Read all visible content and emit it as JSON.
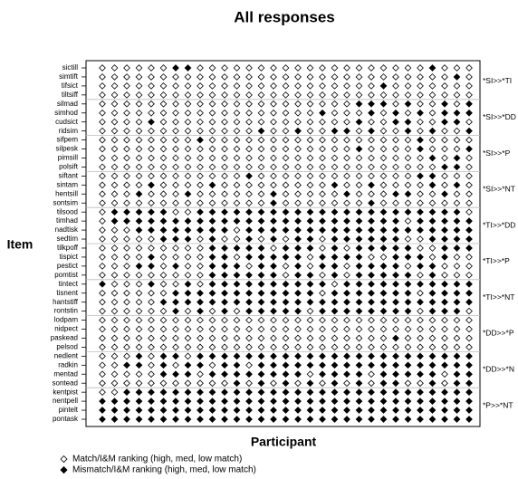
{
  "chart_data": {
    "type": "dot_matrix",
    "title": "All responses",
    "xlabel": "Participant",
    "ylabel": "Item",
    "categories": [
      "sictill",
      "simtift",
      "tifsict",
      "tiltsiff",
      "silmad",
      "simhod",
      "cudsict",
      "ridsim",
      "sifpem",
      "silpesk",
      "pimsill",
      "polsift",
      "siftant",
      "sintam",
      "hentsill",
      "sontsim",
      "tilsood",
      "timhad",
      "nadtisk",
      "sedtim",
      "tilkpoff",
      "tispict",
      "pestict",
      "pomtist",
      "tintect",
      "tisnent",
      "hantstiff",
      "rontstin",
      "lodpam",
      "nidpect",
      "paskead",
      "pelsod",
      "nedlent",
      "radkin",
      "mentad",
      "sontead",
      "kentpist",
      "nentpell",
      "pintelt",
      "pontask"
    ],
    "group_labels": [
      "*SI>>*TI",
      "*SI>>*DD",
      "*SI>>*P",
      "*SI>>*NT",
      "*TI>>*DD",
      "*TI>>*P",
      "*TI>>*NT",
      "*DD>>*P",
      "*DD>>*N",
      "*P>>*NT"
    ],
    "legend": [
      "Match/I&M ranking (high, med, low match)",
      "Mismatch/I&M ranking (high, med, low match)"
    ],
    "values": [
      [
        0,
        0,
        0,
        0,
        0,
        0,
        1,
        1,
        0,
        0,
        0,
        0,
        0,
        0,
        0,
        0,
        0,
        0,
        0,
        0,
        0,
        0,
        0,
        0,
        0,
        0,
        0,
        1,
        0,
        0,
        0
      ],
      [
        0,
        0,
        0,
        0,
        0,
        0,
        0,
        0,
        0,
        0,
        0,
        0,
        0,
        0,
        0,
        0,
        0,
        0,
        0,
        0,
        0,
        0,
        0,
        0,
        0,
        0,
        0,
        0,
        0,
        1,
        0
      ],
      [
        0,
        0,
        0,
        0,
        0,
        0,
        0,
        0,
        0,
        0,
        0,
        0,
        0,
        0,
        0,
        0,
        0,
        0,
        0,
        0,
        0,
        0,
        0,
        1,
        0,
        0,
        0,
        0,
        0,
        0,
        0
      ],
      [
        0,
        0,
        0,
        0,
        0,
        0,
        0,
        0,
        0,
        0,
        0,
        0,
        0,
        0,
        0,
        0,
        0,
        0,
        0,
        0,
        0,
        0,
        0,
        0,
        0,
        0,
        0,
        0,
        0,
        0,
        0
      ],
      [
        0,
        0,
        0,
        0,
        0,
        0,
        0,
        0,
        0,
        0,
        0,
        0,
        0,
        0,
        0,
        0,
        0,
        0,
        0,
        0,
        0,
        1,
        1,
        1,
        0,
        1,
        0,
        0,
        1,
        0,
        1
      ],
      [
        0,
        0,
        0,
        0,
        0,
        0,
        0,
        0,
        0,
        0,
        0,
        0,
        0,
        0,
        0,
        0,
        0,
        0,
        1,
        0,
        0,
        0,
        1,
        0,
        1,
        0,
        1,
        0,
        1,
        1,
        1
      ],
      [
        0,
        0,
        0,
        0,
        1,
        0,
        0,
        0,
        0,
        0,
        0,
        0,
        0,
        0,
        0,
        0,
        0,
        0,
        0,
        0,
        0,
        1,
        0,
        0,
        1,
        1,
        0,
        0,
        1,
        1,
        0
      ],
      [
        0,
        0,
        0,
        0,
        0,
        0,
        0,
        0,
        0,
        0,
        0,
        0,
        0,
        1,
        0,
        0,
        1,
        0,
        0,
        1,
        1,
        0,
        1,
        0,
        0,
        1,
        0,
        1,
        0,
        0,
        1
      ],
      [
        0,
        0,
        0,
        0,
        0,
        0,
        0,
        0,
        1,
        0,
        0,
        0,
        0,
        0,
        0,
        0,
        0,
        0,
        0,
        0,
        0,
        0,
        0,
        0,
        0,
        0,
        1,
        0,
        0,
        0,
        0
      ],
      [
        0,
        0,
        0,
        0,
        0,
        0,
        0,
        0,
        0,
        0,
        0,
        0,
        0,
        0,
        0,
        0,
        0,
        0,
        0,
        0,
        0,
        1,
        0,
        0,
        0,
        0,
        1,
        0,
        0,
        0,
        1
      ],
      [
        0,
        0,
        0,
        0,
        0,
        0,
        0,
        0,
        0,
        0,
        0,
        0,
        0,
        0,
        0,
        0,
        0,
        0,
        0,
        0,
        0,
        0,
        0,
        0,
        0,
        0,
        0,
        1,
        0,
        1,
        0
      ],
      [
        0,
        0,
        0,
        0,
        0,
        0,
        0,
        0,
        0,
        0,
        0,
        0,
        0,
        0,
        0,
        0,
        0,
        0,
        0,
        0,
        0,
        0,
        0,
        0,
        0,
        0,
        0,
        0,
        1,
        1,
        0
      ],
      [
        0,
        0,
        0,
        0,
        0,
        0,
        0,
        0,
        0,
        0,
        0,
        0,
        1,
        0,
        0,
        0,
        0,
        0,
        0,
        0,
        0,
        0,
        0,
        0,
        0,
        0,
        1,
        1,
        0,
        0,
        0
      ],
      [
        0,
        0,
        0,
        0,
        1,
        0,
        0,
        0,
        0,
        1,
        0,
        0,
        0,
        0,
        0,
        0,
        0,
        0,
        0,
        1,
        0,
        0,
        1,
        0,
        0,
        0,
        0,
        1,
        0,
        1,
        0
      ],
      [
        0,
        0,
        0,
        1,
        0,
        0,
        0,
        1,
        0,
        0,
        0,
        0,
        0,
        0,
        1,
        0,
        0,
        0,
        0,
        0,
        1,
        0,
        0,
        0,
        1,
        1,
        0,
        0,
        1,
        0,
        0
      ],
      [
        0,
        0,
        0,
        0,
        0,
        0,
        0,
        0,
        0,
        0,
        0,
        0,
        0,
        0,
        1,
        0,
        0,
        0,
        0,
        0,
        0,
        0,
        1,
        0,
        0,
        0,
        0,
        0,
        0,
        0,
        0
      ],
      [
        0,
        1,
        1,
        1,
        1,
        1,
        0,
        0,
        1,
        1,
        1,
        1,
        1,
        1,
        1,
        1,
        1,
        1,
        1,
        1,
        1,
        1,
        1,
        1,
        1,
        1,
        1,
        1,
        1,
        1,
        0
      ],
      [
        0,
        1,
        1,
        1,
        1,
        1,
        1,
        1,
        1,
        1,
        1,
        1,
        1,
        1,
        1,
        1,
        1,
        1,
        1,
        1,
        1,
        1,
        1,
        1,
        1,
        0,
        1,
        1,
        1,
        1,
        1
      ],
      [
        0,
        0,
        0,
        1,
        1,
        1,
        1,
        1,
        1,
        1,
        1,
        0,
        1,
        1,
        1,
        1,
        1,
        1,
        1,
        1,
        1,
        1,
        1,
        1,
        1,
        1,
        1,
        1,
        1,
        1,
        1
      ],
      [
        0,
        0,
        0,
        0,
        0,
        1,
        1,
        1,
        0,
        1,
        0,
        0,
        1,
        0,
        1,
        0,
        1,
        1,
        0,
        1,
        1,
        1,
        1,
        1,
        1,
        0,
        0,
        1,
        1,
        1,
        1
      ],
      [
        0,
        0,
        0,
        0,
        0,
        0,
        0,
        0,
        0,
        1,
        1,
        1,
        1,
        1,
        0,
        1,
        1,
        1,
        0,
        1,
        0,
        1,
        1,
        1,
        1,
        1,
        0,
        0,
        1,
        1,
        1
      ],
      [
        0,
        0,
        0,
        0,
        1,
        0,
        0,
        0,
        0,
        1,
        1,
        0,
        1,
        1,
        1,
        1,
        1,
        0,
        1,
        1,
        1,
        1,
        0,
        0,
        1,
        1,
        1,
        0,
        1,
        0,
        0
      ],
      [
        0,
        0,
        0,
        1,
        1,
        0,
        1,
        0,
        0,
        1,
        1,
        1,
        0,
        1,
        1,
        0,
        1,
        0,
        1,
        1,
        0,
        1,
        1,
        1,
        1,
        0,
        1,
        1,
        0,
        0,
        0
      ],
      [
        0,
        0,
        0,
        0,
        0,
        0,
        0,
        0,
        0,
        1,
        1,
        1,
        1,
        1,
        1,
        0,
        1,
        1,
        0,
        1,
        0,
        1,
        1,
        1,
        1,
        1,
        0,
        1,
        0,
        0,
        0
      ],
      [
        1,
        0,
        0,
        0,
        1,
        0,
        0,
        1,
        0,
        1,
        1,
        1,
        1,
        1,
        1,
        1,
        1,
        1,
        1,
        0,
        1,
        1,
        1,
        1,
        1,
        1,
        1,
        1,
        1,
        1,
        1
      ],
      [
        0,
        0,
        0,
        0,
        0,
        0,
        1,
        1,
        1,
        1,
        1,
        1,
        1,
        1,
        1,
        1,
        1,
        1,
        0,
        1,
        1,
        1,
        1,
        1,
        1,
        1,
        0,
        1,
        1,
        1,
        1
      ],
      [
        0,
        0,
        0,
        0,
        0,
        1,
        1,
        1,
        1,
        1,
        1,
        1,
        1,
        1,
        1,
        1,
        1,
        1,
        1,
        1,
        1,
        1,
        1,
        1,
        1,
        1,
        1,
        1,
        1,
        1,
        1
      ],
      [
        0,
        0,
        0,
        0,
        0,
        0,
        1,
        0,
        1,
        0,
        1,
        0,
        1,
        1,
        1,
        1,
        1,
        0,
        1,
        1,
        1,
        1,
        1,
        1,
        1,
        1,
        0,
        1,
        1,
        1,
        0
      ],
      [
        0,
        0,
        0,
        0,
        0,
        0,
        0,
        0,
        0,
        0,
        0,
        0,
        0,
        0,
        0,
        0,
        0,
        0,
        0,
        0,
        0,
        0,
        0,
        0,
        0,
        0,
        0,
        0,
        0,
        0,
        0
      ],
      [
        0,
        0,
        0,
        0,
        0,
        0,
        0,
        0,
        0,
        0,
        0,
        0,
        0,
        0,
        0,
        0,
        0,
        0,
        0,
        0,
        0,
        0,
        0,
        0,
        0,
        0,
        0,
        0,
        0,
        0,
        0
      ],
      [
        0,
        0,
        0,
        0,
        0,
        0,
        0,
        0,
        0,
        0,
        0,
        0,
        0,
        0,
        0,
        0,
        0,
        0,
        0,
        0,
        0,
        0,
        0,
        0,
        1,
        0,
        0,
        0,
        0,
        0,
        0
      ],
      [
        0,
        0,
        0,
        0,
        0,
        0,
        0,
        0,
        0,
        0,
        0,
        0,
        0,
        0,
        0,
        0,
        0,
        0,
        0,
        0,
        0,
        0,
        0,
        0,
        0,
        0,
        0,
        0,
        0,
        0,
        0
      ],
      [
        0,
        0,
        0,
        1,
        0,
        1,
        1,
        0,
        1,
        1,
        1,
        1,
        1,
        1,
        1,
        1,
        1,
        1,
        1,
        1,
        1,
        1,
        1,
        1,
        1,
        1,
        1,
        1,
        1,
        1,
        1
      ],
      [
        0,
        0,
        1,
        1,
        0,
        1,
        0,
        1,
        1,
        0,
        1,
        1,
        0,
        1,
        1,
        1,
        1,
        1,
        1,
        1,
        1,
        1,
        1,
        1,
        1,
        1,
        1,
        1,
        1,
        1,
        1
      ],
      [
        0,
        0,
        0,
        0,
        0,
        1,
        1,
        1,
        0,
        1,
        1,
        1,
        1,
        1,
        1,
        1,
        1,
        0,
        1,
        1,
        1,
        1,
        0,
        1,
        1,
        1,
        1,
        1,
        0,
        1,
        1
      ],
      [
        0,
        0,
        0,
        0,
        0,
        0,
        0,
        0,
        0,
        0,
        0,
        1,
        0,
        1,
        0,
        1,
        0,
        1,
        0,
        1,
        0,
        1,
        0,
        1,
        1,
        0,
        0,
        1,
        0,
        1,
        1
      ],
      [
        0,
        0,
        1,
        1,
        1,
        1,
        1,
        1,
        1,
        1,
        1,
        1,
        1,
        1,
        1,
        1,
        1,
        1,
        1,
        1,
        1,
        1,
        1,
        1,
        1,
        1,
        1,
        1,
        1,
        1,
        1
      ],
      [
        1,
        1,
        1,
        1,
        1,
        1,
        1,
        1,
        1,
        1,
        1,
        1,
        1,
        1,
        1,
        1,
        1,
        1,
        1,
        1,
        1,
        1,
        1,
        1,
        1,
        1,
        1,
        1,
        1,
        1,
        1
      ],
      [
        1,
        1,
        1,
        1,
        1,
        1,
        1,
        1,
        1,
        1,
        1,
        1,
        1,
        1,
        1,
        1,
        1,
        1,
        1,
        1,
        1,
        1,
        1,
        1,
        1,
        1,
        1,
        1,
        1,
        1,
        1
      ],
      [
        1,
        1,
        1,
        1,
        1,
        1,
        1,
        1,
        1,
        1,
        1,
        1,
        1,
        1,
        1,
        1,
        1,
        1,
        1,
        1,
        1,
        1,
        1,
        1,
        1,
        1,
        1,
        1,
        1,
        1,
        1
      ]
    ]
  }
}
